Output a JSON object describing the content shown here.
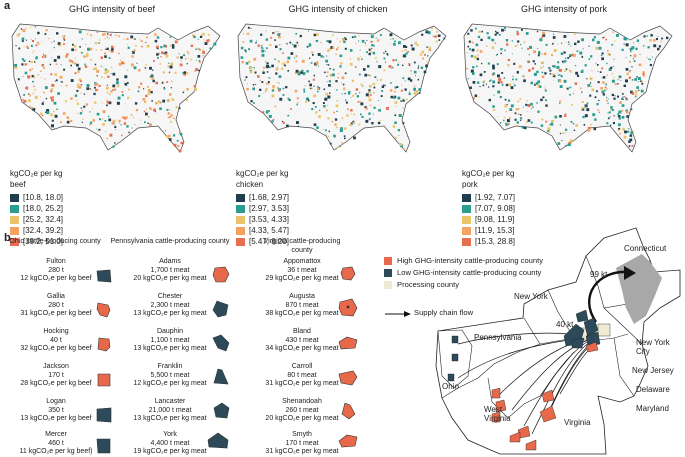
{
  "panel_a": {
    "letter": "a",
    "maps": [
      {
        "title": "GHG intensity of beef",
        "legend_title": "kgCO₂e per kg beef",
        "bins": [
          "[10.8, 18.0]",
          "[18.0, 25.2]",
          "[25.2, 32.4]",
          "[32.4, 39.2]",
          "[39.2, 51.0]"
        ]
      },
      {
        "title": "GHG intensity of chicken",
        "legend_title": "kgCO₂e per kg chicken",
        "bins": [
          "[1.68, 2.97]",
          "[2.97, 3.53]",
          "[3.53, 4.33]",
          "[4.33, 5.47]",
          "[5.47, 8.20]"
        ]
      },
      {
        "title": "GHG intensity of pork",
        "legend_title": "kgCO₂e per kg pork",
        "bins": [
          "[1.92, 7.07]",
          "[7.07, 9.08]",
          "[9.08, 11.9]",
          "[11.9, 15.3]",
          "[15.3, 28.8]"
        ]
      }
    ],
    "bin_colors": [
      "#1f3f4f",
      "#2a9d8f",
      "#e9c46a",
      "#f4a261",
      "#e76f51"
    ]
  },
  "panel_b": {
    "letter": "b",
    "columns": [
      {
        "header": "Ohio cattle-producing county",
        "counties": [
          {
            "name": "Fulton",
            "amount": "280 t",
            "intensity": "12 kgCO₂e per kg beef",
            "level": "low"
          },
          {
            "name": "Gallia",
            "amount": "280 t",
            "intensity": "31 kgCO₂e per kg beef",
            "level": "high"
          },
          {
            "name": "Hocking",
            "amount": "40 t",
            "intensity": "32 kgCO₂e per kg beef",
            "level": "high"
          },
          {
            "name": "Jackson",
            "amount": "170 t",
            "intensity": "28 kgCO₂e per kg beef",
            "level": "high"
          },
          {
            "name": "Logan",
            "amount": "350 t",
            "intensity": "13 kgCO₂e per kg beef",
            "level": "low"
          },
          {
            "name": "Mercer",
            "amount": "460 t",
            "intensity": "11 kgCO₂e per kg beef)",
            "level": "low"
          }
        ]
      },
      {
        "header": "Pennsylvania cattle-producing county",
        "counties": [
          {
            "name": "Adams",
            "amount": "1,700 t meat",
            "intensity": "20 kgCO₂e per kg meat",
            "level": "high"
          },
          {
            "name": "Chester",
            "amount": "2,300 t meat",
            "intensity": "13 kgCO₂e per kg meat",
            "level": "low"
          },
          {
            "name": "Dauphin",
            "amount": "1,100 t meat",
            "intensity": "13 kgCO₂e per kg meat",
            "level": "low"
          },
          {
            "name": "Franklin",
            "amount": "5,500 t meat",
            "intensity": "12 kgCO₂e per kg meat",
            "level": "low"
          },
          {
            "name": "Lancaster",
            "amount": "21,000 t meat",
            "intensity": "13 kgCO₂e per kg meat",
            "level": "low"
          },
          {
            "name": "York",
            "amount": "4,400 t meat",
            "intensity": "19 kgCO₂e per kg meat",
            "level": "low"
          }
        ]
      },
      {
        "header": "Virginia cattle-producing county",
        "counties": [
          {
            "name": "Appomattox",
            "amount": "36 t meat",
            "intensity": "29 kgCO₂e per kg meat",
            "level": "high"
          },
          {
            "name": "Augusta",
            "amount": "870 t meat",
            "intensity": "38 kgCO₂e per kg meat",
            "level": "high"
          },
          {
            "name": "Bland",
            "amount": "430 t meat",
            "intensity": "34 kgCO₂e per kg meat",
            "level": "high"
          },
          {
            "name": "Carroll",
            "amount": "80 t meat",
            "intensity": "31 kgCO₂e per kg meat",
            "level": "high"
          },
          {
            "name": "Shenandoah",
            "amount": "260 t meat",
            "intensity": "20 kgCO₂e per kg meat",
            "level": "high"
          },
          {
            "name": "Smyth",
            "amount": "170 t meat",
            "intensity": "31 kgCO₂e per kg meat",
            "level": "high"
          }
        ]
      }
    ],
    "legend": {
      "high": "High GHG-intensity cattle-producing county",
      "low": "Low GHG-intensity cattle-producing county",
      "processing": "Processing county",
      "flow": "Supply chain flow"
    },
    "colors": {
      "high": "#e8694a",
      "low": "#2c4a5a",
      "processing": "#f0ead2",
      "nyc": "#a8a8a8"
    },
    "states": {
      "new_york": "New York",
      "connecticut": "Connecticut",
      "pennsylvania": "Pennsylvania",
      "new_york_city": "New York City",
      "new_jersey": "New Jersey",
      "delaware": "Delaware",
      "maryland": "Maryland",
      "ohio": "Ohio",
      "west_virginia": "West Virginia",
      "virginia": "Virginia"
    },
    "flows": {
      "to_nyc": "99 kt",
      "to_processing": "40 kt"
    }
  }
}
